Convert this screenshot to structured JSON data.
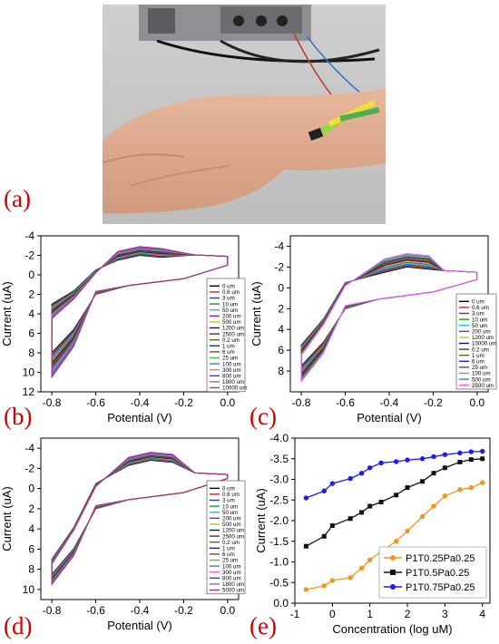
{
  "panel_labels": {
    "a": "(a)",
    "b": "(b)",
    "c": "(c)",
    "d": "(d)",
    "e": "(e)"
  },
  "photo": {
    "description_icon": "wrist-sensor-photo-icon"
  },
  "chart_data": [
    {
      "id": "b",
      "type": "line",
      "title": "",
      "xlabel": "Potential (V)",
      "ylabel": "Current (uA)",
      "xlim": [
        -0.85,
        0.05
      ],
      "ylim": [
        -4,
        12
      ],
      "y_inverted": true,
      "xticks": [
        "-0.8",
        "-0.6",
        "-0.4",
        "-0.2",
        "0.0"
      ],
      "yticks": [
        "-4",
        "-2",
        "0",
        "2",
        "4",
        "6",
        "8",
        "10",
        "12"
      ],
      "legend_position": "right",
      "series_names": [
        "0 um",
        "0.6 um",
        "3 um",
        "10 um",
        "50 um",
        "200 um",
        "500 um",
        "1200 um",
        "2500 um",
        "0.2 um",
        "1 um",
        "6 um",
        "25 um",
        "100 um",
        "300 um",
        "800 um",
        "1800 um",
        "10000 um"
      ],
      "series_colors": [
        "#000000",
        "#e31a1c",
        "#1f3bd6",
        "#12a012",
        "#23b8ff",
        "#c71585",
        "#c8c800",
        "#101060",
        "#8b1a1a",
        "#5b6f1a",
        "#2a1acc",
        "#8b4a22",
        "#33cc33",
        "#3a7fd5",
        "#ff55ff",
        "#4040aa",
        "#9b5fc0",
        "#b03070"
      ],
      "envelope": {
        "x_right": 0.0,
        "x_left": -0.8,
        "peak_x": -0.4,
        "peak_y_range": [
          -2.0,
          -2.9
        ],
        "right_y_top": -1.9,
        "right_y_bottom": -1.0,
        "left_y_upper_range": [
          3.0,
          4.5
        ],
        "left_y_lower_range": [
          8.0,
          10.5
        ]
      }
    },
    {
      "id": "c",
      "type": "line",
      "title": "",
      "xlabel": "Potential (V)",
      "ylabel": "Current (uA)",
      "xlim": [
        -0.85,
        0.05
      ],
      "ylim": [
        -5,
        10
      ],
      "y_inverted": true,
      "xticks": [
        "-0.8",
        "-0.6",
        "-0.4",
        "-0.2",
        "0.0"
      ],
      "yticks": [
        "-4",
        "-2",
        "0",
        "2",
        "4",
        "6",
        "8"
      ],
      "legend_position": "right",
      "series_names": [
        "0 um",
        "0.6 um",
        "3 um",
        "10 um",
        "50 um",
        "200 um",
        "1200 um",
        "10000 um",
        "0.2 um",
        "1 um",
        "6 um",
        "25 um",
        "100 um",
        "500 um",
        "2500 um"
      ],
      "series_colors": [
        "#000000",
        "#e31a1c",
        "#1f3bd6",
        "#12a012",
        "#23b8ff",
        "#c71585",
        "#c8c800",
        "#101060",
        "#8b1a1a",
        "#5b6f1a",
        "#2a1acc",
        "#8b4a22",
        "#33cc33",
        "#3a7fd5",
        "#ff55ff"
      ],
      "envelope": {
        "x_right": 0.0,
        "x_left": -0.8,
        "peak_x": -0.32,
        "peak_y_range": [
          -2.0,
          -3.3
        ],
        "right_y_top": -1.5,
        "right_y_bottom": -0.8,
        "left_y_upper_range": [
          5.5,
          6.5
        ],
        "left_y_lower_range": [
          7.5,
          9.0
        ]
      }
    },
    {
      "id": "d",
      "type": "line",
      "title": "",
      "xlabel": "Potential (V)",
      "ylabel": "Current (uA)",
      "xlim": [
        -0.85,
        0.05
      ],
      "ylim": [
        -5,
        11
      ],
      "y_inverted": true,
      "xticks": [
        "-0.8",
        "-0.6",
        "-0.4",
        "-0.2",
        "0.0"
      ],
      "yticks": [
        "-4",
        "-2",
        "0",
        "2",
        "4",
        "6",
        "8",
        "10"
      ],
      "legend_position": "right",
      "series_names": [
        "0 um",
        "0.6 um",
        "3 um",
        "10 um",
        "50 um",
        "200 um",
        "500 um",
        "1200 um",
        "2500 um",
        "0.2 um",
        "1 um",
        "6 um",
        "25 um",
        "100 um",
        "300 um",
        "800 um",
        "1800 um",
        "5000 um"
      ],
      "series_colors": [
        "#000000",
        "#e31a1c",
        "#1f3bd6",
        "#12a012",
        "#23b8ff",
        "#c71585",
        "#c8c800",
        "#101060",
        "#8b1a1a",
        "#5b6f1a",
        "#2a1acc",
        "#8b4a22",
        "#33cc33",
        "#3a7fd5",
        "#ff55ff",
        "#4040aa",
        "#9b5fc0",
        "#b03070"
      ],
      "envelope": {
        "x_right": 0.0,
        "x_left": -0.8,
        "peak_x": -0.35,
        "peak_y_range": [
          -2.8,
          -3.6
        ],
        "right_y_top": -1.4,
        "right_y_bottom": -1.0,
        "left_y_upper_range": [
          7.0,
          7.5
        ],
        "left_y_lower_range": [
          8.5,
          9.5
        ]
      }
    },
    {
      "id": "e",
      "type": "line",
      "title": "",
      "xlabel": "Concentration (log uM)",
      "ylabel": "Current (uA)",
      "xlim": [
        -1,
        4.2
      ],
      "ylim": [
        0,
        -4
      ],
      "y_inverted": true,
      "xticks": [
        "-1",
        "0",
        "1",
        "2",
        "3",
        "4"
      ],
      "yticks": [
        "0.0",
        "-0.5",
        "-1.0",
        "-1.5",
        "-2.0",
        "-2.5",
        "-3.0",
        "-3.5",
        "-4.0"
      ],
      "legend_position": "bottom-right",
      "series": [
        {
          "name": "P1T0.25Pa0.25",
          "color": "#f7931e",
          "marker": "circle",
          "x": [
            -0.7,
            -0.22,
            0.0,
            0.48,
            0.78,
            1.0,
            1.3,
            1.7,
            2.0,
            2.4,
            2.7,
            3.0,
            3.4,
            3.7,
            4.0
          ],
          "y": [
            -0.33,
            -0.42,
            -0.55,
            -0.62,
            -0.85,
            -1.05,
            -1.25,
            -1.5,
            -1.75,
            -2.1,
            -2.35,
            -2.6,
            -2.75,
            -2.8,
            -2.92
          ]
        },
        {
          "name": "P1T0.5Pa0.25",
          "color": "#111111",
          "marker": "square",
          "x": [
            -0.7,
            -0.22,
            0.0,
            0.48,
            0.78,
            1.0,
            1.3,
            1.7,
            2.0,
            2.4,
            2.7,
            3.0,
            3.4,
            3.7,
            4.0
          ],
          "y": [
            -1.38,
            -1.62,
            -1.88,
            -2.05,
            -2.2,
            -2.35,
            -2.45,
            -2.62,
            -2.8,
            -2.95,
            -3.15,
            -3.28,
            -3.42,
            -3.48,
            -3.5
          ]
        },
        {
          "name": "P1T0.75Pa0.25",
          "color": "#1a1aff",
          "marker": "circle",
          "x": [
            -0.7,
            -0.22,
            0.0,
            0.48,
            0.78,
            1.0,
            1.3,
            1.7,
            2.0,
            2.4,
            2.7,
            3.0,
            3.4,
            3.7,
            4.0
          ],
          "y": [
            -2.55,
            -2.72,
            -2.9,
            -3.02,
            -3.15,
            -3.28,
            -3.4,
            -3.43,
            -3.47,
            -3.5,
            -3.55,
            -3.6,
            -3.64,
            -3.67,
            -3.68
          ]
        }
      ]
    }
  ]
}
